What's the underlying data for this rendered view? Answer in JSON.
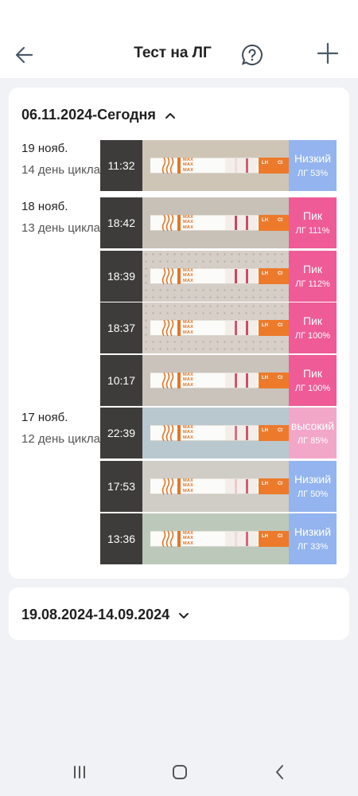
{
  "header": {
    "title": "Тест на ЛГ"
  },
  "sections": [
    {
      "range": "06.11.2024-Сегодня",
      "expanded": true,
      "days": [
        {
          "date": "19 нояб.",
          "cycle": "14 день цикла",
          "tests": [
            {
              "time": "11:32",
              "level": "Низкий",
              "value": "ЛГ 53%",
              "color": "#93b4ee",
              "t": 0.1,
              "c": 0.75,
              "bg": "#cfc5b6"
            }
          ]
        },
        {
          "date": "18 нояб.",
          "cycle": "13 день цикла",
          "tests": [
            {
              "time": "18:42",
              "level": "Пик",
              "value": "ЛГ 111%",
              "color": "#ee5b96",
              "t": 0.95,
              "c": 0.85,
              "bg": "#c7c1b8"
            },
            {
              "time": "18:39",
              "level": "Пик",
              "value": "ЛГ 112%",
              "color": "#ee5b96",
              "t": 0.95,
              "c": 0.85,
              "bg": "#d5cec6"
            },
            {
              "time": "18:37",
              "level": "Пик",
              "value": "ЛГ 100%",
              "color": "#ee5b96",
              "t": 0.85,
              "c": 0.85,
              "bg": "#d8d0c8"
            },
            {
              "time": "10:17",
              "level": "Пик",
              "value": "ЛГ 100%",
              "color": "#ee5b96",
              "t": 0.85,
              "c": 0.85,
              "bg": "#c9c3bb"
            }
          ]
        },
        {
          "date": "17 нояб.",
          "cycle": "12 день цикла",
          "tests": [
            {
              "time": "22:39",
              "level": "высокий",
              "value": "ЛГ 85%",
              "color": "#f2a7c8",
              "t": 0.7,
              "c": 0.8,
              "bg": "#b9c8cf"
            },
            {
              "time": "17:53",
              "level": "Низкий",
              "value": "ЛГ 50%",
              "color": "#93b4ee",
              "t": 0.2,
              "c": 0.75,
              "bg": "#d0ccc6"
            },
            {
              "time": "13:36",
              "level": "Низкий",
              "value": "ЛГ 33%",
              "color": "#93b4ee",
              "t": 0.1,
              "c": 0.7,
              "bg": "#bcc9ba"
            }
          ]
        }
      ]
    },
    {
      "range": "19.08.2024-14.09.2024",
      "expanded": false
    }
  ],
  "strip_labels": {
    "max": "MAX",
    "lh": "LH",
    "ci": "CI"
  },
  "icons": {
    "back": "arrow-left-icon",
    "help": "question-bubble-icon",
    "add": "plus-icon",
    "expand": "chevron-up-icon",
    "collapse": "chevron-down-icon"
  }
}
